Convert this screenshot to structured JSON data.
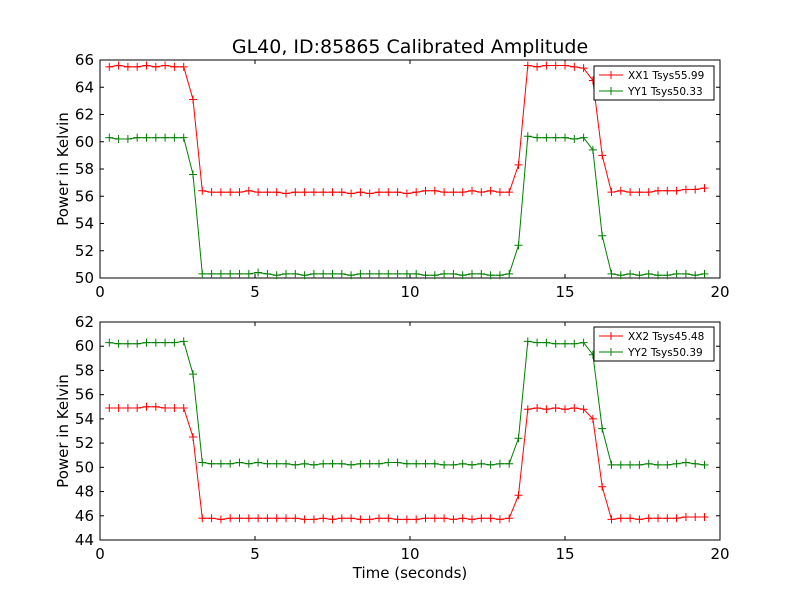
{
  "chart_data": [
    {
      "type": "line",
      "title": "GL40, ID:85865 Calibrated Amplitude",
      "xlabel": "",
      "ylabel": "Power in Kelvin",
      "xlim": [
        0,
        20
      ],
      "ylim": [
        50,
        66
      ],
      "xticks": [
        "0",
        "5",
        "10",
        "15",
        "20"
      ],
      "yticks": [
        "50",
        "52",
        "54",
        "56",
        "58",
        "60",
        "62",
        "64",
        "66"
      ],
      "grid": false,
      "legend_position": "top-right",
      "x": [
        0.3,
        0.6,
        0.9,
        1.2,
        1.5,
        1.8,
        2.1,
        2.4,
        2.7,
        3.0,
        3.3,
        3.6,
        3.9,
        4.2,
        4.5,
        4.8,
        5.1,
        5.4,
        5.7,
        6.0,
        6.3,
        6.6,
        6.9,
        7.2,
        7.5,
        7.8,
        8.1,
        8.4,
        8.7,
        9.0,
        9.3,
        9.6,
        9.9,
        10.2,
        10.5,
        10.8,
        11.1,
        11.4,
        11.7,
        12.0,
        12.3,
        12.6,
        12.9,
        13.2,
        13.5,
        13.8,
        14.1,
        14.4,
        14.7,
        15.0,
        15.3,
        15.6,
        15.9,
        16.2,
        16.5,
        16.8,
        17.1,
        17.4,
        17.7,
        18.0,
        18.3,
        18.6,
        18.9,
        19.2,
        19.5
      ],
      "series": [
        {
          "name": "XX1 Tsys55.99",
          "color": "#ff0000",
          "values": [
            65.5,
            65.6,
            65.5,
            65.5,
            65.6,
            65.5,
            65.6,
            65.5,
            65.5,
            63.1,
            56.4,
            56.3,
            56.3,
            56.3,
            56.3,
            56.4,
            56.3,
            56.3,
            56.3,
            56.2,
            56.3,
            56.3,
            56.3,
            56.3,
            56.3,
            56.3,
            56.2,
            56.3,
            56.2,
            56.3,
            56.3,
            56.3,
            56.2,
            56.3,
            56.4,
            56.4,
            56.3,
            56.3,
            56.3,
            56.4,
            56.3,
            56.4,
            56.3,
            56.3,
            58.3,
            65.6,
            65.5,
            65.6,
            65.6,
            65.6,
            65.5,
            65.4,
            64.5,
            59.0,
            56.3,
            56.4,
            56.3,
            56.3,
            56.3,
            56.4,
            56.4,
            56.4,
            56.5,
            56.5,
            56.6
          ]
        },
        {
          "name": "YY1 Tsys50.33",
          "color": "#008000",
          "values": [
            60.3,
            60.2,
            60.2,
            60.3,
            60.3,
            60.3,
            60.3,
            60.3,
            60.3,
            57.6,
            50.3,
            50.3,
            50.3,
            50.3,
            50.3,
            50.3,
            50.4,
            50.3,
            50.2,
            50.3,
            50.3,
            50.2,
            50.3,
            50.3,
            50.3,
            50.3,
            50.2,
            50.3,
            50.3,
            50.3,
            50.3,
            50.3,
            50.3,
            50.3,
            50.2,
            50.2,
            50.3,
            50.3,
            50.2,
            50.3,
            50.3,
            50.2,
            50.2,
            50.3,
            52.4,
            60.4,
            60.3,
            60.3,
            60.3,
            60.3,
            60.2,
            60.3,
            59.4,
            53.1,
            50.3,
            50.2,
            50.3,
            50.2,
            50.3,
            50.2,
            50.2,
            50.3,
            50.3,
            50.2,
            50.3
          ]
        }
      ]
    },
    {
      "type": "line",
      "title": "",
      "xlabel": "Time (seconds)",
      "ylabel": "Power in Kelvin",
      "xlim": [
        0,
        20
      ],
      "ylim": [
        44,
        62
      ],
      "xticks": [
        "0",
        "5",
        "10",
        "15",
        "20"
      ],
      "yticks": [
        "44",
        "46",
        "48",
        "50",
        "52",
        "54",
        "56",
        "58",
        "60",
        "62"
      ],
      "grid": false,
      "legend_position": "top-right",
      "x": [
        0.3,
        0.6,
        0.9,
        1.2,
        1.5,
        1.8,
        2.1,
        2.4,
        2.7,
        3.0,
        3.3,
        3.6,
        3.9,
        4.2,
        4.5,
        4.8,
        5.1,
        5.4,
        5.7,
        6.0,
        6.3,
        6.6,
        6.9,
        7.2,
        7.5,
        7.8,
        8.1,
        8.4,
        8.7,
        9.0,
        9.3,
        9.6,
        9.9,
        10.2,
        10.5,
        10.8,
        11.1,
        11.4,
        11.7,
        12.0,
        12.3,
        12.6,
        12.9,
        13.2,
        13.5,
        13.8,
        14.1,
        14.4,
        14.7,
        15.0,
        15.3,
        15.6,
        15.9,
        16.2,
        16.5,
        16.8,
        17.1,
        17.4,
        17.7,
        18.0,
        18.3,
        18.6,
        18.9,
        19.2,
        19.5
      ],
      "series": [
        {
          "name": "XX2 Tsys45.48",
          "color": "#ff0000",
          "values": [
            54.9,
            54.9,
            54.9,
            54.9,
            55.0,
            55.0,
            54.9,
            54.9,
            54.9,
            52.5,
            45.8,
            45.8,
            45.7,
            45.8,
            45.8,
            45.8,
            45.8,
            45.8,
            45.8,
            45.8,
            45.8,
            45.7,
            45.7,
            45.8,
            45.7,
            45.8,
            45.8,
            45.7,
            45.7,
            45.8,
            45.8,
            45.7,
            45.7,
            45.7,
            45.8,
            45.8,
            45.8,
            45.7,
            45.8,
            45.7,
            45.8,
            45.8,
            45.7,
            45.8,
            47.7,
            54.8,
            54.9,
            54.8,
            54.9,
            54.8,
            54.9,
            54.8,
            54.0,
            48.4,
            45.7,
            45.8,
            45.8,
            45.7,
            45.8,
            45.8,
            45.8,
            45.8,
            45.9,
            45.9,
            45.9
          ]
        },
        {
          "name": "YY2 Tsys50.39",
          "color": "#008000",
          "values": [
            60.3,
            60.2,
            60.2,
            60.2,
            60.3,
            60.3,
            60.3,
            60.3,
            60.4,
            57.7,
            50.4,
            50.3,
            50.3,
            50.3,
            50.4,
            50.3,
            50.4,
            50.3,
            50.3,
            50.3,
            50.2,
            50.3,
            50.2,
            50.3,
            50.3,
            50.3,
            50.2,
            50.3,
            50.3,
            50.3,
            50.4,
            50.4,
            50.3,
            50.3,
            50.3,
            50.3,
            50.2,
            50.2,
            50.3,
            50.2,
            50.3,
            50.2,
            50.3,
            50.3,
            52.4,
            60.4,
            60.3,
            60.3,
            60.2,
            60.2,
            60.2,
            60.3,
            59.3,
            53.2,
            50.2,
            50.2,
            50.2,
            50.2,
            50.3,
            50.2,
            50.2,
            50.3,
            50.4,
            50.3,
            50.2
          ]
        }
      ]
    }
  ]
}
